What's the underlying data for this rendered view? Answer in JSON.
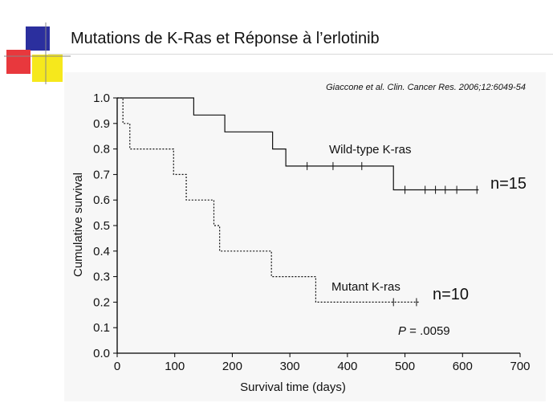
{
  "slide": {
    "title": "Mutations de K-Ras et Réponse à l’erlotinib"
  },
  "colors": {
    "logo_blue": "#2b2f9e",
    "logo_red": "#e8383d",
    "logo_yellow": "#f6e81c"
  },
  "chart_data": {
    "type": "line",
    "citation": "Giaccone et al. Clin. Cancer Res. 2006;12:6049-54",
    "xlabel": "Survival time (days)",
    "ylabel": "Cumulative survival",
    "xlim": [
      0,
      700
    ],
    "ylim": [
      0,
      1.0
    ],
    "xticks": [
      0,
      100,
      200,
      300,
      400,
      500,
      600,
      700
    ],
    "yticks": [
      0.0,
      0.1,
      0.2,
      0.3,
      0.4,
      0.5,
      0.6,
      0.7,
      0.8,
      0.9,
      1.0
    ],
    "grid": false,
    "series": [
      {
        "name": "Wild-type K-ras",
        "n_label": "n=15",
        "style": "solid",
        "steps": [
          [
            0,
            1.0
          ],
          [
            133,
            0.933
          ],
          [
            187,
            0.867
          ],
          [
            270,
            0.8
          ],
          [
            293,
            0.733
          ],
          [
            480,
            0.64
          ],
          [
            628,
            0.64
          ]
        ],
        "censored": [
          330,
          375,
          425,
          500,
          535,
          553,
          570,
          590,
          625
        ]
      },
      {
        "name": "Mutant K-ras",
        "n_label": "n=10",
        "style": "dotted",
        "steps": [
          [
            0,
            1.0
          ],
          [
            10,
            0.9
          ],
          [
            22,
            0.8
          ],
          [
            98,
            0.7
          ],
          [
            120,
            0.6
          ],
          [
            168,
            0.5
          ],
          [
            178,
            0.4
          ],
          [
            268,
            0.3
          ],
          [
            345,
            0.2
          ],
          [
            525,
            0.2
          ]
        ],
        "censored": [
          480,
          520
        ]
      }
    ],
    "annotations": {
      "p_label": "P",
      "p_value": " = .0059"
    }
  }
}
